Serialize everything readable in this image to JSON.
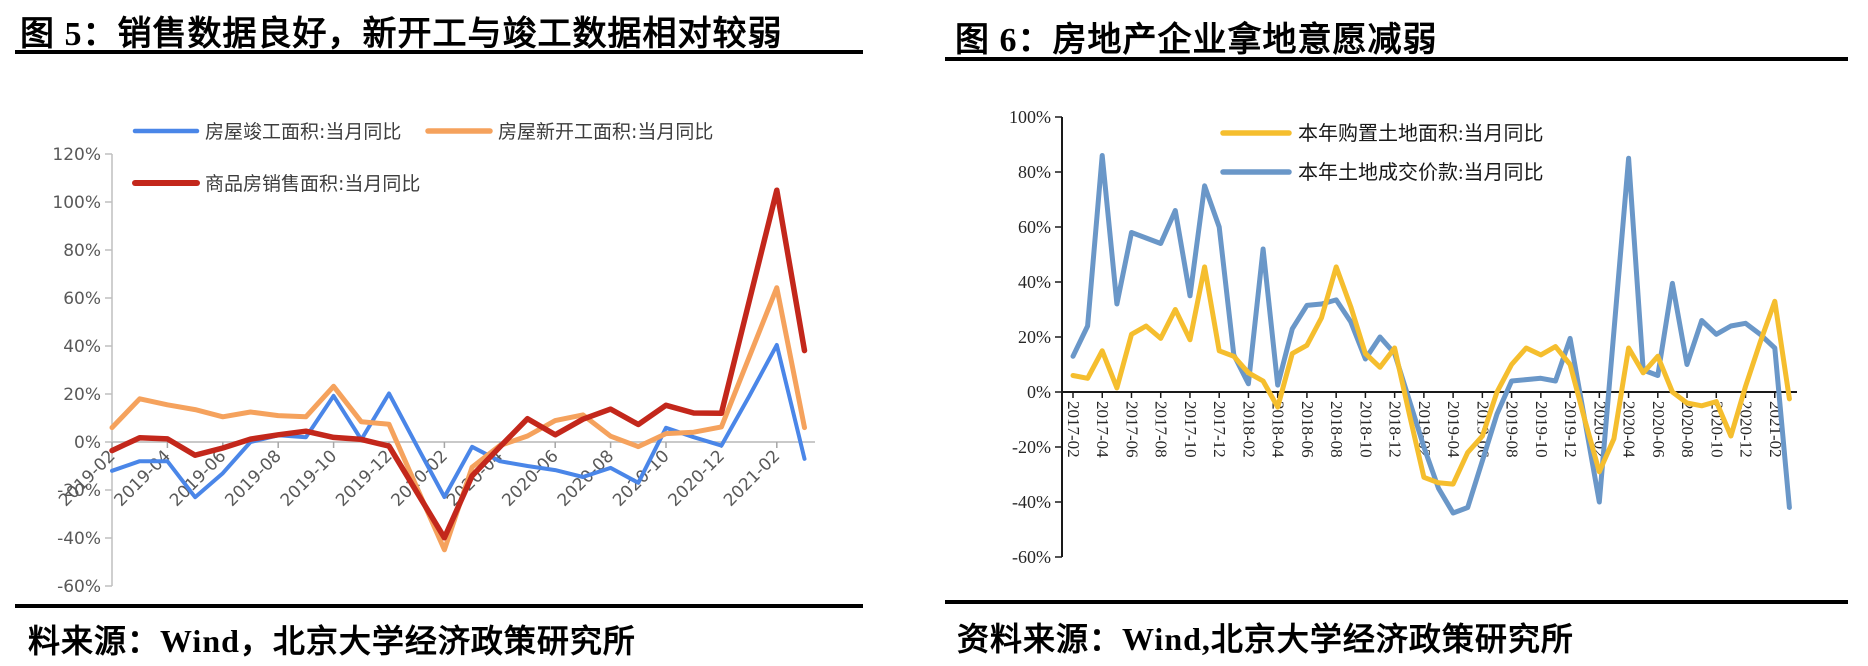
{
  "figures": [
    {
      "id": "fig5",
      "title": "图 5：销售数据良好，新开工与竣工数据相对较弱",
      "caption": "料来源：Wind，北京大学经济政策研究所",
      "chart_data": {
        "type": "line",
        "title": "",
        "xlabel": "",
        "ylabel": "",
        "ylim": [
          -60,
          120
        ],
        "ytick_step": 20,
        "ytick_labels": [
          "120%",
          "100%",
          "80%",
          "60%",
          "40%",
          "20%",
          "0%",
          "-20%",
          "-40%",
          "-60%"
        ],
        "grid": "zero-line-only",
        "legend_position": "top-left-inside",
        "x_label_every": 2,
        "x_label_rotation": -45,
        "categories": [
          "2019-02",
          "2019-03",
          "2019-04",
          "2019-05",
          "2019-06",
          "2019-07",
          "2019-08",
          "2019-09",
          "2019-10",
          "2019-11",
          "2019-12",
          "2020-01",
          "2020-02",
          "2020-03",
          "2020-04",
          "2020-05",
          "2020-06",
          "2020-07",
          "2020-08",
          "2020-09",
          "2020-10",
          "2020-11",
          "2020-12",
          "2021-01",
          "2021-02",
          "2021-03"
        ],
        "series": [
          {
            "name": "房屋竣工面积:当月同比",
            "color": "#4A86E8",
            "values": [
              -12,
              -8,
              -8,
              -23,
              -13,
              0,
              2.8,
              2,
              19.2,
              1,
              20.2,
              -1.5,
              -22.9,
              -2,
              -8,
              -10,
              -11.7,
              -14.6,
              -10.8,
              -17,
              5.9,
              2,
              -1.5,
              19,
              40.4,
              -7
            ]
          },
          {
            "name": "房屋新开工面积:当月同比",
            "color": "#F5A25D",
            "values": [
              6,
              18,
              15.5,
              13.5,
              10.5,
              12.5,
              11,
              10.5,
              23.2,
              8.4,
              7.4,
              -18.8,
              -44.9,
              -10.5,
              -1.5,
              2.5,
              8.9,
              11.3,
              2.4,
              -1.9,
              3.5,
              4.1,
              6.3,
              35.3,
              64.3,
              6
            ]
          },
          {
            "name": "商品房销售面积:当月同比",
            "color": "#C3271B",
            "values": [
              -3.6,
              1.8,
              1.3,
              -5.5,
              -2.5,
              1.2,
              3,
              4.5,
              1.9,
              1.1,
              -1.7,
              -20.8,
              -39.9,
              -14.1,
              -2.1,
              9.7,
              3,
              9.5,
              13.7,
              7.3,
              15.3,
              12.1,
              12,
              58.5,
              104.9,
              38.1
            ]
          }
        ]
      }
    },
    {
      "id": "fig6",
      "title": "图 6：房地产企业拿地意愿减弱",
      "caption": "资料来源：Wind,北京大学经济政策研究所",
      "chart_data": {
        "type": "line",
        "title": "",
        "xlabel": "",
        "ylabel": "",
        "ylim": [
          -60,
          100
        ],
        "ytick_step": 20,
        "ytick_labels": [
          "100%",
          "80%",
          "60%",
          "40%",
          "20%",
          "0%",
          "-20%",
          "-40%",
          "-60%"
        ],
        "grid": "zero-line-only",
        "legend_position": "top-center-inside",
        "x_label_every": 2,
        "x_label_rotation": 90,
        "categories": [
          "2017-02",
          "2017-03",
          "2017-04",
          "2017-05",
          "2017-06",
          "2017-07",
          "2017-08",
          "2017-09",
          "2017-10",
          "2017-11",
          "2017-12",
          "2018-01",
          "2018-02",
          "2018-03",
          "2018-04",
          "2018-05",
          "2018-06",
          "2018-07",
          "2018-08",
          "2018-09",
          "2018-10",
          "2018-11",
          "2018-12",
          "2019-01",
          "2019-02",
          "2019-03",
          "2019-04",
          "2019-05",
          "2019-06",
          "2019-07",
          "2019-08",
          "2019-09",
          "2019-10",
          "2019-11",
          "2019-12",
          "2020-01",
          "2020-02",
          "2020-03",
          "2020-04",
          "2020-05",
          "2020-06",
          "2020-07",
          "2020-08",
          "2020-09",
          "2020-10",
          "2020-11",
          "2020-12",
          "2021-01",
          "2021-02",
          "2021-03"
        ],
        "series": [
          {
            "name": "本年购置土地面积:当月同比",
            "color": "#F5BE2E",
            "values": [
              6,
              5,
              15,
              1.5,
              21,
              24,
              19.5,
              30,
              19,
              45.5,
              15,
              13,
              7,
              4,
              -5.5,
              14,
              17,
              27,
              45.5,
              31,
              14,
              9,
              16,
              -8,
              -31,
              -33,
              -33.5,
              -22,
              -16,
              0,
              10,
              16,
              13.5,
              16.5,
              10,
              -10,
              -29,
              -17,
              16,
              7,
              13,
              0,
              -4,
              -5,
              -3.5,
              -16,
              2,
              18,
              33,
              -2.5
            ]
          },
          {
            "name": "本年土地成交价款:当月同比",
            "color": "#6A97C8",
            "values": [
              13,
              24,
              86,
              32,
              58,
              56,
              54,
              66,
              35,
              75,
              60,
              13.5,
              3,
              52,
              2.5,
              23,
              31.5,
              32,
              33.5,
              25.5,
              12,
              20,
              14,
              -3,
              -20,
              -35,
              -44,
              -42,
              -25,
              -8,
              4,
              4.5,
              5,
              4,
              19.5,
              -10,
              -40,
              22,
              85,
              8,
              6,
              39.5,
              10,
              26,
              21,
              24,
              25,
              21,
              16,
              -42
            ]
          }
        ]
      }
    }
  ]
}
